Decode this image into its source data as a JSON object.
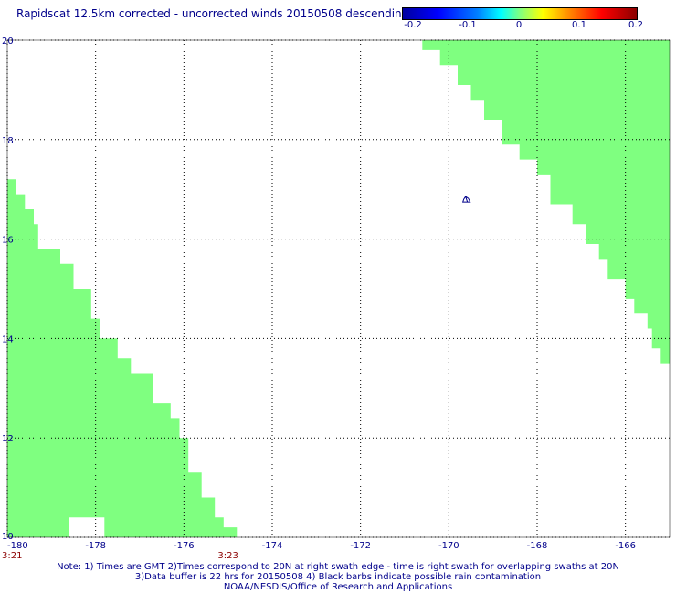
{
  "title": "Rapidscat 12.5km corrected - uncorrected winds 20150508 descending",
  "colorbar": {
    "ticks": [
      "-0.2",
      "-0.1",
      "0",
      "0.1",
      "0.2"
    ],
    "values": [
      -0.2,
      -0.1,
      0,
      0.1,
      0.2
    ]
  },
  "axes": {
    "x_ticks": [
      "-180",
      "-178",
      "-176",
      "-174",
      "-172",
      "-170",
      "-168",
      "-166"
    ],
    "y_ticks": [
      "10",
      "12",
      "14",
      "16",
      "18",
      "20"
    ],
    "lon_range": [
      -180,
      -165
    ],
    "lat_range": [
      10,
      20
    ]
  },
  "times": [
    {
      "label": "3:21",
      "lon": -180
    },
    {
      "label": "3:23",
      "lon": -175
    }
  ],
  "colors": {
    "swath": "#7fff80",
    "text": "#00008b",
    "grid": "#000000",
    "time": "#8b0000"
  },
  "swaths": [
    {
      "name": "left-swath",
      "points": [
        [
          -180,
          10
        ],
        [
          -178.6,
          10
        ],
        [
          -178.6,
          10.4
        ],
        [
          -177.8,
          10.4
        ],
        [
          -177.8,
          10
        ],
        [
          -174.8,
          10
        ],
        [
          -174.8,
          10.2
        ],
        [
          -175.1,
          10.2
        ],
        [
          -175.1,
          10.4
        ],
        [
          -175.3,
          10.4
        ],
        [
          -175.3,
          10.8
        ],
        [
          -175.6,
          10.8
        ],
        [
          -175.6,
          11.3
        ],
        [
          -175.9,
          11.3
        ],
        [
          -175.9,
          12
        ],
        [
          -176.1,
          12
        ],
        [
          -176.1,
          12.4
        ],
        [
          -176.3,
          12.4
        ],
        [
          -176.3,
          12.7
        ],
        [
          -176.7,
          12.7
        ],
        [
          -176.7,
          13.3
        ],
        [
          -177.2,
          13.3
        ],
        [
          -177.2,
          13.6
        ],
        [
          -177.5,
          13.6
        ],
        [
          -177.5,
          14
        ],
        [
          -177.9,
          14
        ],
        [
          -177.9,
          14.4
        ],
        [
          -178.1,
          14.4
        ],
        [
          -178.1,
          15
        ],
        [
          -178.5,
          15
        ],
        [
          -178.5,
          15.5
        ],
        [
          -178.8,
          15.5
        ],
        [
          -178.8,
          15.8
        ],
        [
          -179.3,
          15.8
        ],
        [
          -179.3,
          16.3
        ],
        [
          -179.4,
          16.3
        ],
        [
          -179.4,
          16.6
        ],
        [
          -179.6,
          16.6
        ],
        [
          -179.6,
          16.9
        ],
        [
          -179.8,
          16.9
        ],
        [
          -179.8,
          17.2
        ],
        [
          -180,
          17.2
        ]
      ]
    },
    {
      "name": "right-swath",
      "points": [
        [
          -170.6,
          20
        ],
        [
          -165,
          20
        ],
        [
          -165,
          13.5
        ],
        [
          -165.2,
          13.5
        ],
        [
          -165.2,
          13.8
        ],
        [
          -165.4,
          13.8
        ],
        [
          -165.4,
          14.2
        ],
        [
          -165.5,
          14.2
        ],
        [
          -165.5,
          14.5
        ],
        [
          -165.8,
          14.5
        ],
        [
          -165.8,
          14.8
        ],
        [
          -166,
          14.8
        ],
        [
          -166,
          15.2
        ],
        [
          -166.4,
          15.2
        ],
        [
          -166.4,
          15.6
        ],
        [
          -166.6,
          15.6
        ],
        [
          -166.6,
          15.9
        ],
        [
          -166.9,
          15.9
        ],
        [
          -166.9,
          16.3
        ],
        [
          -167.2,
          16.3
        ],
        [
          -167.2,
          16.7
        ],
        [
          -167.7,
          16.7
        ],
        [
          -167.7,
          17.3
        ],
        [
          -168,
          17.3
        ],
        [
          -168,
          17.6
        ],
        [
          -168.4,
          17.6
        ],
        [
          -168.4,
          17.9
        ],
        [
          -168.8,
          17.9
        ],
        [
          -168.8,
          18.4
        ],
        [
          -169.2,
          18.4
        ],
        [
          -169.2,
          18.8
        ],
        [
          -169.5,
          18.8
        ],
        [
          -169.5,
          19.1
        ],
        [
          -169.8,
          19.1
        ],
        [
          -169.8,
          19.5
        ],
        [
          -170.2,
          19.5
        ],
        [
          -170.2,
          19.8
        ],
        [
          -170.6,
          19.8
        ]
      ]
    }
  ],
  "barb": {
    "lon": -169.6,
    "lat": 16.8
  },
  "notes": [
    "Note: 1) Times are GMT 2)Times correspond to 20N at right swath edge - time is right swath for overlapping swaths at 20N",
    "3)Data buffer is 22 hrs for 20150508 4) Black barbs indicate possible rain contamination",
    "NOAA/NESDIS/Office of Research and Applications"
  ]
}
